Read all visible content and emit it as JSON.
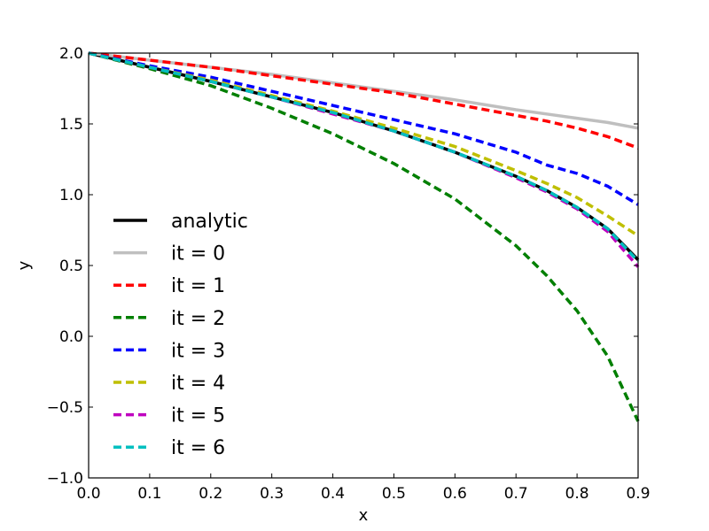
{
  "chart_data": {
    "type": "line",
    "title": "",
    "xlabel": "x",
    "ylabel": "y",
    "xlim": [
      0.0,
      0.9
    ],
    "ylim": [
      -1.0,
      2.0
    ],
    "grid": false,
    "legend_position": "center-left",
    "x_ticks": [
      0.0,
      0.1,
      0.2,
      0.3,
      0.4,
      0.5,
      0.6,
      0.7,
      0.8,
      0.9
    ],
    "x_tick_labels": [
      "0.0",
      "0.1",
      "0.2",
      "0.3",
      "0.4",
      "0.5",
      "0.6",
      "0.7",
      "0.8",
      "0.9"
    ],
    "y_ticks": [
      -1.0,
      -0.5,
      0.0,
      0.5,
      1.0,
      1.5,
      2.0
    ],
    "y_tick_labels": [
      "−1.0",
      "−0.5",
      "0.0",
      "0.5",
      "1.0",
      "1.5",
      "2.0"
    ],
    "x": [
      0.0,
      0.1,
      0.2,
      0.3,
      0.4,
      0.5,
      0.6,
      0.7,
      0.75,
      0.8,
      0.85,
      0.9
    ],
    "series": [
      {
        "name": "analytic",
        "legend_label": "analytic",
        "color": "#000000",
        "style": "solid",
        "values": [
          2.0,
          1.9,
          1.8,
          1.69,
          1.58,
          1.45,
          1.3,
          1.13,
          1.03,
          0.91,
          0.76,
          0.54
        ]
      },
      {
        "name": "it = 0",
        "legend_label": "it = 0",
        "color": "#bfbfbf",
        "style": "solid",
        "values": [
          2.0,
          1.95,
          1.9,
          1.85,
          1.79,
          1.73,
          1.67,
          1.6,
          1.57,
          1.54,
          1.51,
          1.47
        ]
      },
      {
        "name": "it = 1",
        "legend_label": "it = 1",
        "color": "#ff0000",
        "style": "dashed",
        "values": [
          2.0,
          1.95,
          1.9,
          1.84,
          1.78,
          1.72,
          1.64,
          1.56,
          1.52,
          1.47,
          1.41,
          1.33
        ]
      },
      {
        "name": "it = 2",
        "legend_label": "it = 2",
        "color": "#007f00",
        "style": "dashed",
        "values": [
          2.0,
          1.89,
          1.77,
          1.61,
          1.43,
          1.22,
          0.97,
          0.64,
          0.43,
          0.18,
          -0.14,
          -0.6
        ]
      },
      {
        "name": "it = 3",
        "legend_label": "it = 3",
        "color": "#0000ff",
        "style": "dashed",
        "values": [
          2.0,
          1.91,
          1.83,
          1.73,
          1.63,
          1.53,
          1.43,
          1.3,
          1.21,
          1.15,
          1.06,
          0.93
        ]
      },
      {
        "name": "it = 4",
        "legend_label": "it = 4",
        "color": "#bfbf00",
        "style": "dashed",
        "values": [
          2.0,
          1.9,
          1.81,
          1.7,
          1.59,
          1.47,
          1.34,
          1.17,
          1.08,
          0.98,
          0.85,
          0.71
        ]
      },
      {
        "name": "it = 5",
        "legend_label": "it = 5",
        "color": "#bf00bf",
        "style": "dashed",
        "values": [
          2.0,
          1.9,
          1.8,
          1.69,
          1.57,
          1.45,
          1.3,
          1.12,
          1.02,
          0.9,
          0.74,
          0.49
        ]
      },
      {
        "name": "it = 6",
        "legend_label": "it = 6",
        "color": "#00bfbf",
        "style": "dashed",
        "values": [
          2.0,
          1.9,
          1.8,
          1.69,
          1.58,
          1.45,
          1.3,
          1.13,
          1.03,
          0.91,
          0.76,
          0.53
        ]
      }
    ]
  }
}
